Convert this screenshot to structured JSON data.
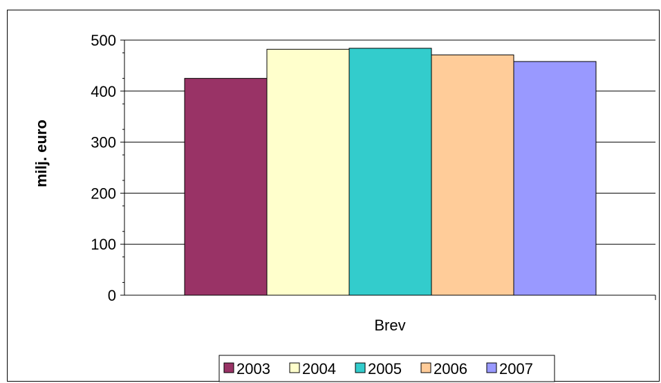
{
  "chart_data": {
    "type": "bar",
    "categories": [
      "Brev"
    ],
    "series": [
      {
        "name": "2003",
        "values": [
          425
        ],
        "color": "#993366"
      },
      {
        "name": "2004",
        "values": [
          482
        ],
        "color": "#FFFFCC"
      },
      {
        "name": "2005",
        "values": [
          484
        ],
        "color": "#33CCCC"
      },
      {
        "name": "2006",
        "values": [
          471
        ],
        "color": "#FFCC99"
      },
      {
        "name": "2007",
        "values": [
          458
        ],
        "color": "#9999FF"
      }
    ],
    "title": "",
    "xlabel": "",
    "ylabel": "milj. euro",
    "ylim": [
      0,
      500
    ],
    "yticks": [
      0,
      100,
      200,
      300,
      400,
      500
    ],
    "grid": true,
    "legend_position": "bottom"
  }
}
